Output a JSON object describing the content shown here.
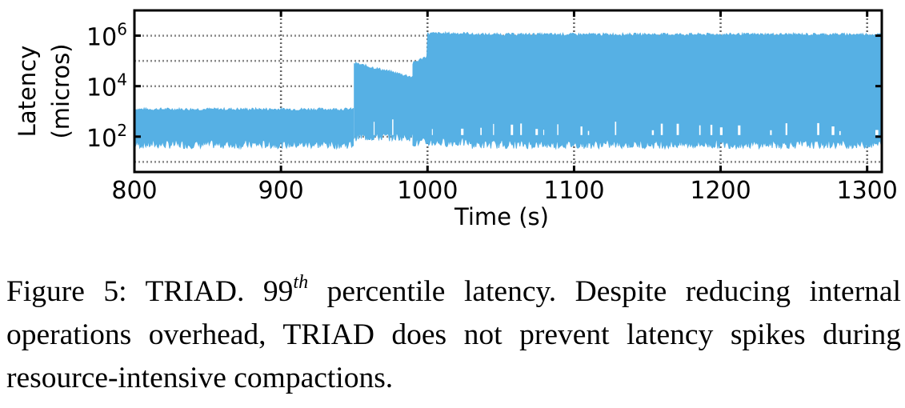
{
  "chart_data": {
    "type": "line",
    "title": "",
    "xlabel": "Time (s)",
    "ylabel": [
      "Latency",
      "(micros)"
    ],
    "xlim": [
      800,
      1310
    ],
    "ylim_log10": [
      0.6,
      7.0
    ],
    "yscale": "log",
    "x_ticks": [
      800,
      900,
      1000,
      1100,
      1200,
      1300
    ],
    "x_tick_labels": [
      "800",
      "900",
      "1000",
      "1100",
      "1200",
      "1300"
    ],
    "y_ticks": [
      {
        "value": 100,
        "base": "10",
        "exp": "2"
      },
      {
        "value": 10000,
        "base": "10",
        "exp": "4"
      },
      {
        "value": 1000000,
        "base": "10",
        "exp": "6"
      }
    ],
    "grid": "dotted horizontal and vertical",
    "series": [
      {
        "name": "99th percentile latency",
        "color": "#56b0e4",
        "segments": [
          {
            "x": [
              800,
              950
            ],
            "high": 1200,
            "low": 50
          },
          {
            "x": [
              950,
              990
            ],
            "high": 80000,
            "low": 100
          },
          {
            "x": [
              990,
              1030
            ],
            "high": 1200000,
            "low": 60
          },
          {
            "x": [
              1030,
              1310
            ],
            "high": 1100000,
            "low": 50
          }
        ]
      }
    ]
  },
  "caption": {
    "prefix": "Figure 5:  TRIAD. 99",
    "sup": "th",
    "rest": " percentile latency.  Despite reducing internal operations overhead, TRIAD does not prevent latency spikes during resource-intensive compactions."
  }
}
